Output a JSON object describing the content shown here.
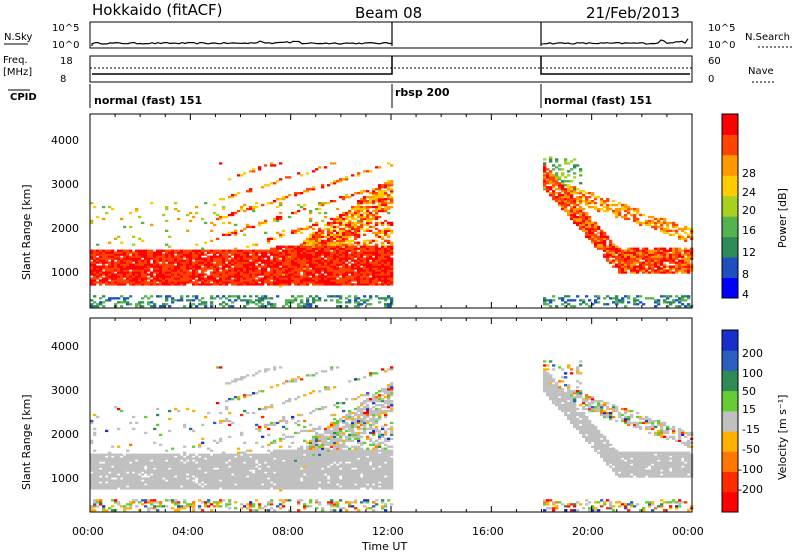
{
  "header": {
    "title": "Hokkaido (fitACF)",
    "beam": "Beam 08",
    "date": "21/Feb/2013"
  },
  "noise_panel": {
    "left_label": "N.Sky",
    "right_label": "N.Search",
    "left_ticks": [
      "10^5",
      "10^0"
    ],
    "right_ticks": [
      "10^5",
      "10^0"
    ]
  },
  "freq_panel": {
    "left_label_line1": "Freq.",
    "left_label_line2": "[MHz]",
    "left_ticks": [
      "18",
      "8"
    ],
    "right_label": "Nave",
    "right_ticks": [
      "60",
      "0"
    ],
    "cpid_label": "CPID",
    "cpid_segments": [
      {
        "label": "normal (fast) 151",
        "start_hour": 0,
        "end_hour": 12
      },
      {
        "label": "rbsp 200",
        "start_hour": 12,
        "end_hour": 18
      },
      {
        "label": "normal (fast) 151",
        "start_hour": 18,
        "end_hour": 24
      }
    ]
  },
  "chart_data": [
    {
      "type": "heatmap",
      "name": "power",
      "ylabel": "Slant Range [km]",
      "yticks": [
        "1000",
        "2000",
        "3000",
        "4000"
      ],
      "ylim": [
        200,
        4600
      ],
      "xlim_hours": [
        0,
        24
      ],
      "colorbar_label": "Power [dB]",
      "colorbar_ticks": [
        "28",
        "24",
        "20",
        "16",
        "12",
        "8",
        "4"
      ]
    },
    {
      "type": "heatmap",
      "name": "velocity",
      "ylabel": "Slant Range [km]",
      "yticks": [
        "1000",
        "2000",
        "3000",
        "4000"
      ],
      "ylim": [
        200,
        4600
      ],
      "xlim_hours": [
        0,
        24
      ],
      "colorbar_label": "Velocity [m s⁻¹]",
      "colorbar_ticks": [
        "200",
        "100",
        "50",
        "15",
        "-15",
        "-50",
        "-100",
        "-200"
      ]
    }
  ],
  "x_axis": {
    "ticks": [
      "00:00",
      "04:00",
      "08:00",
      "12:00",
      "16:00",
      "20:00",
      "00:00"
    ],
    "label": "Time UT"
  },
  "colors": {
    "power": [
      "#0000ff",
      "#1f4fbf",
      "#2e8b57",
      "#55b34f",
      "#a8d020",
      "#ffcc00",
      "#ff9900",
      "#ff4400",
      "#ff0000"
    ],
    "velocity": [
      "#1a2ecc",
      "#2a5fbf",
      "#2e8b57",
      "#66cc33",
      "#c0c0c0",
      "#ffb000",
      "#ff7700",
      "#ff2a00",
      "#ff0000"
    ],
    "ground_scatter": "#c0c0c0"
  }
}
